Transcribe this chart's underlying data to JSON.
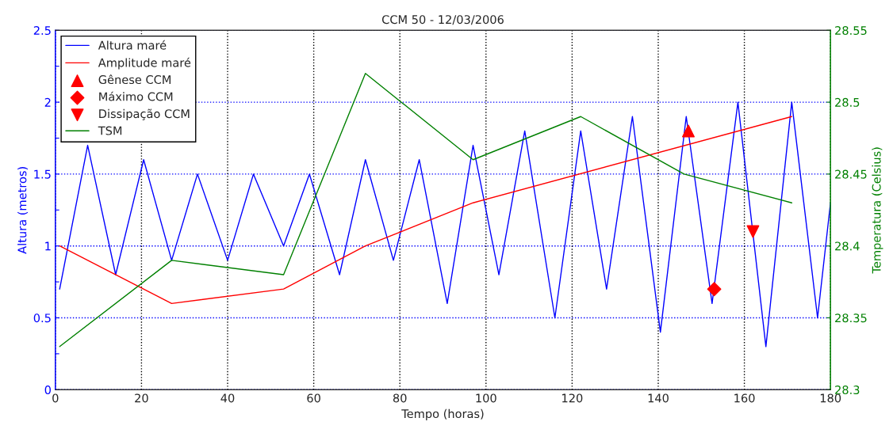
{
  "chart_data": {
    "type": "line",
    "title": "CCM 50 - 12/03/2006",
    "xlabel": "Tempo (horas)",
    "ylabel": "Altura (metros)",
    "y2label": "Temperatura (Celsius)",
    "xlim": [
      0,
      180
    ],
    "xticks": [
      0,
      20,
      40,
      60,
      80,
      100,
      120,
      140,
      160,
      180
    ],
    "ylim": [
      0,
      2.5
    ],
    "yticks": [
      0,
      {
        "value": 0.25,
        "label": null
      },
      0.5,
      {
        "value": 0.75,
        "label": null
      },
      1,
      {
        "value": 1.25,
        "label": null
      },
      1.5,
      {
        "value": 1.75,
        "label": null
      },
      2,
      {
        "value": 2.25,
        "label": null
      },
      2.5
    ],
    "y2lim": [
      28.3,
      28.55
    ],
    "y2ticks": [
      28.3,
      28.35,
      28.4,
      28.45,
      28.5,
      28.55
    ],
    "grid": true,
    "legend": "top left",
    "marker": "none",
    "line_style": "solid",
    "series": [
      {
        "name": "Altura maré",
        "color": "#0000ff",
        "x": [
          1,
          7.5,
          14,
          20.5,
          27,
          33,
          40,
          46,
          53,
          59,
          66,
          72,
          78.5,
          84.5,
          91,
          97,
          103,
          109,
          116,
          122,
          128,
          134,
          140.5,
          146.5,
          152.5,
          158.5,
          165,
          171,
          177,
          180
        ],
        "values": [
          0.7,
          1.7,
          0.8,
          1.6,
          0.9,
          1.5,
          0.9,
          1.5,
          1.0,
          1.5,
          0.8,
          1.6,
          0.9,
          1.6,
          0.6,
          1.7,
          0.8,
          1.8,
          0.5,
          1.8,
          0.7,
          1.9,
          0.4,
          1.9,
          0.6,
          2.0,
          0.3,
          2.0,
          0.5,
          1.3
        ]
      },
      {
        "name": "Amplitude maré",
        "color": "#ff0000",
        "x": [
          1,
          27,
          53,
          72,
          97,
          171
        ],
        "values": [
          1.0,
          0.6,
          0.7,
          1.0,
          1.3,
          1.9
        ]
      },
      {
        "name": "Gênese CCM",
        "type": "scatter",
        "marker": "triangle",
        "color": "#ff0000",
        "x": [
          147
        ],
        "values": [
          1.8
        ]
      },
      {
        "name": "Máximo CCM",
        "type": "scatter",
        "marker": "diamond",
        "color": "#ff0000",
        "x": [
          153
        ],
        "values": [
          0.7
        ]
      },
      {
        "name": "Dissipação CCM",
        "type": "scatter",
        "marker": "triangle-down",
        "color": "#ff0000",
        "x": [
          162
        ],
        "values": [
          1.1
        ]
      },
      {
        "name": "TSM",
        "axis": "y2",
        "color": "#008000",
        "x": [
          1,
          27,
          53,
          72,
          97,
          122,
          146,
          171
        ],
        "values": [
          28.33,
          28.39,
          28.38,
          28.52,
          28.46,
          28.49,
          28.45,
          28.43
        ]
      }
    ]
  }
}
